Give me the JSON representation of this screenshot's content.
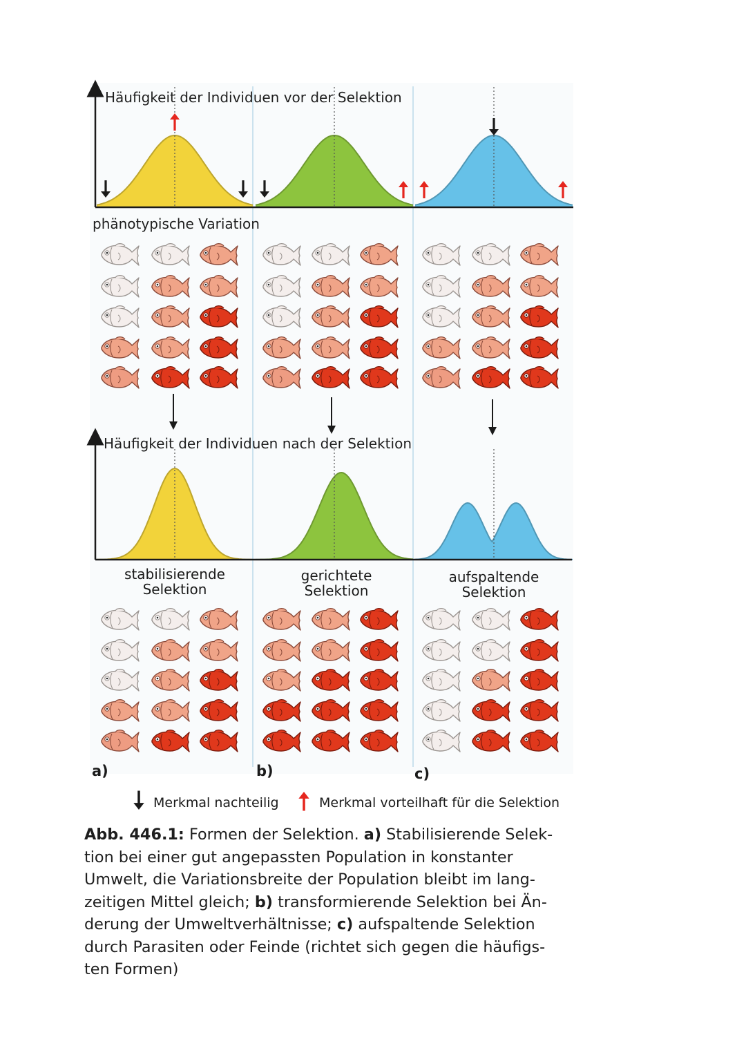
{
  "diagram": {
    "top_axis_label": "Häufigkeit der Individuen vor der Selektion",
    "bottom_axis_label": "Häufigkeit der Individuen nach der Selektion",
    "x_axis_label": "phänotypische Variation",
    "panels": [
      {
        "letter": "a)",
        "name_line1": "stabilisierende",
        "name_line2": "Selektion",
        "curve_color": "#f2d33a",
        "markers": [
          {
            "type": "advantageous",
            "where": "peak"
          },
          {
            "type": "disadvantageous",
            "where": "left-tail"
          },
          {
            "type": "disadvantageous",
            "where": "right-tail"
          }
        ],
        "fish_before": [
          [
            0,
            0,
            2
          ],
          [
            0,
            2,
            2
          ],
          [
            0,
            2,
            4
          ],
          [
            2,
            2,
            4
          ],
          [
            3,
            4,
            4
          ]
        ],
        "fish_after": [
          [
            0,
            0,
            2
          ],
          [
            0,
            2,
            2
          ],
          [
            0,
            2,
            4
          ],
          [
            2,
            2,
            4
          ],
          [
            3,
            4,
            4
          ]
        ]
      },
      {
        "letter": "b)",
        "name_line1": "gerichtete",
        "name_line2": "Selektion",
        "curve_color": "#8dc43e",
        "markers": [
          {
            "type": "disadvantageous",
            "where": "left-tail"
          },
          {
            "type": "advantageous",
            "where": "right-tail"
          }
        ],
        "fish_before": [
          [
            0,
            0,
            2
          ],
          [
            0,
            2,
            2
          ],
          [
            0,
            2,
            4
          ],
          [
            2,
            2,
            4
          ],
          [
            3,
            4,
            4
          ]
        ],
        "fish_after": [
          [
            2,
            2,
            4
          ],
          [
            2,
            2,
            4
          ],
          [
            2,
            4,
            4
          ],
          [
            4,
            4,
            4
          ],
          [
            4,
            4,
            4
          ]
        ]
      },
      {
        "letter": "c)",
        "name_line1": "aufspaltende",
        "name_line2": "Selektion",
        "curve_color": "#66c1e8",
        "markers": [
          {
            "type": "disadvantageous",
            "where": "peak"
          },
          {
            "type": "advantageous",
            "where": "left-tail"
          },
          {
            "type": "advantageous",
            "where": "right-tail"
          }
        ],
        "fish_before": [
          [
            0,
            0,
            2
          ],
          [
            0,
            2,
            2
          ],
          [
            0,
            2,
            4
          ],
          [
            2,
            2,
            4
          ],
          [
            3,
            4,
            4
          ]
        ],
        "fish_after": [
          [
            0,
            0,
            4
          ],
          [
            0,
            0,
            4
          ],
          [
            0,
            2,
            4
          ],
          [
            0,
            4,
            4
          ],
          [
            0,
            4,
            4
          ]
        ]
      }
    ],
    "fish_shades": [
      "#f4eeec",
      "#f7ddd6",
      "#f0a488",
      "#ee9c82",
      "#e0381c"
    ],
    "legend": {
      "disadvantageous_label": "Merkmal nachteilig",
      "advantageous_label": "Merkmal vorteilhaft für die Selektion",
      "disadvantageous_color": "#1a1a1a",
      "advantageous_color": "#e5261e"
    }
  },
  "caption": {
    "label": "Abb. 446.1:",
    "line1_plain": "Formen der Selektion.",
    "line1_bold_a": "a)",
    "line1_rest": "Stabilisierende Selek-",
    "line2": "tion bei einer gut angepassten Population in konstanter",
    "line3": "Umwelt, die Variationsbreite der Population bleibt im lang-",
    "line4_a": "zeitigen Mittel gleich;",
    "line4_bold_b": "b)",
    "line4_rest": "transformierende Selektion bei Än-",
    "line5_a": "derung der Umweltverhältnisse;",
    "line5_bold_c": "c)",
    "line5_rest": "aufspaltende Selektion",
    "line6": "durch Parasiten oder Feinde (richtet sich gegen die häufigs-",
    "line7": "ten Formen)"
  }
}
